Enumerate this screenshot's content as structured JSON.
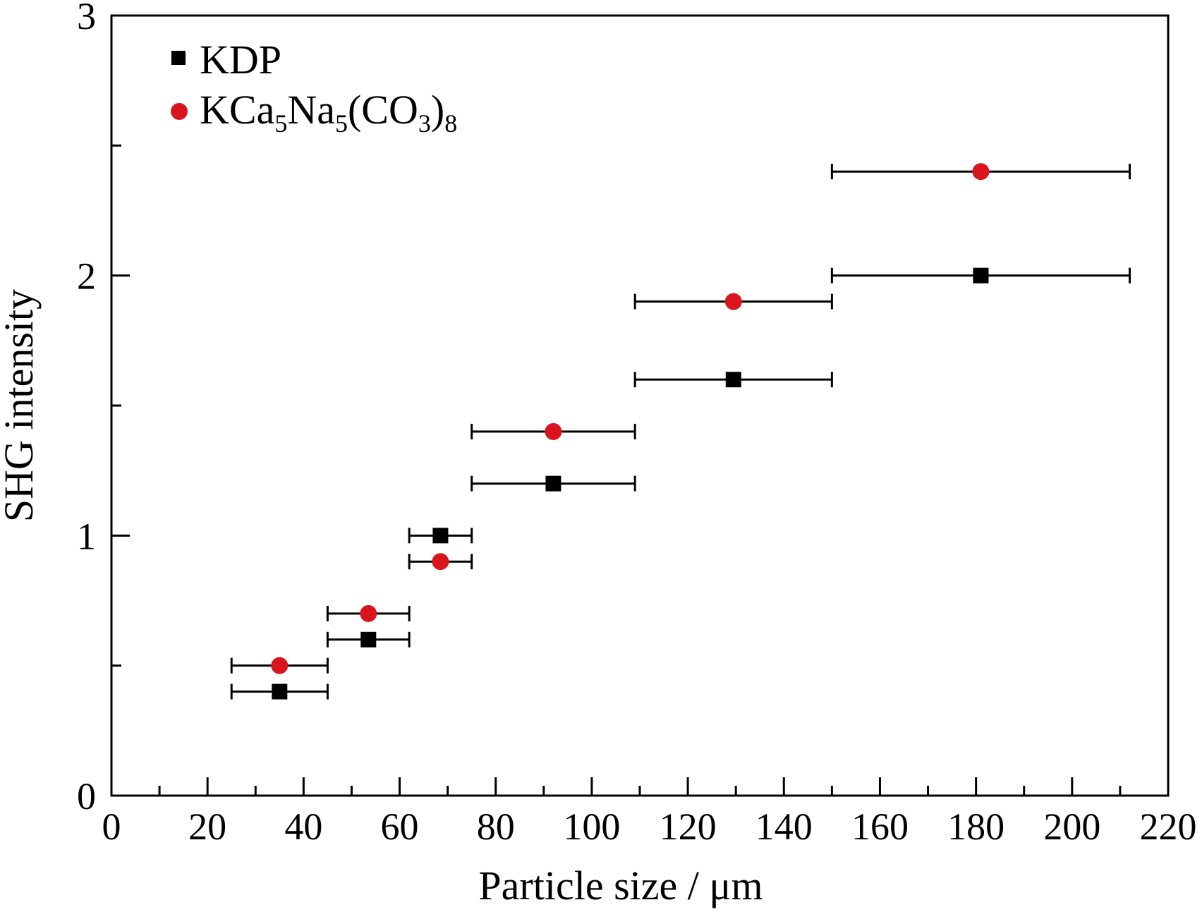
{
  "chart_data": {
    "type": "scatter",
    "xlabel": "Particle size / μm",
    "ylabel": "SHG intensity",
    "xlim": [
      0,
      220
    ],
    "ylim": [
      0,
      3
    ],
    "x_ticks": [
      0,
      20,
      40,
      60,
      80,
      100,
      120,
      140,
      160,
      180,
      200,
      220
    ],
    "y_ticks": [
      0,
      1,
      2,
      3
    ],
    "legend_position": "top-left",
    "grid": false,
    "series": [
      {
        "name": "KDP",
        "marker": "square",
        "color": "#000000",
        "points": [
          {
            "x": 35,
            "y": 0.4,
            "xmin": 25,
            "xmax": 45
          },
          {
            "x": 53.5,
            "y": 0.6,
            "xmin": 45,
            "xmax": 62
          },
          {
            "x": 68.5,
            "y": 1.0,
            "xmin": 62,
            "xmax": 75
          },
          {
            "x": 92,
            "y": 1.2,
            "xmin": 75,
            "xmax": 109
          },
          {
            "x": 129.5,
            "y": 1.6,
            "xmin": 109,
            "xmax": 150
          },
          {
            "x": 181,
            "y": 2.0,
            "xmin": 150,
            "xmax": 212
          }
        ]
      },
      {
        "name": "KCa5Na5(CO3)8",
        "marker": "circle",
        "color": "#d9141c",
        "points": [
          {
            "x": 35,
            "y": 0.5,
            "xmin": 25,
            "xmax": 45
          },
          {
            "x": 53.5,
            "y": 0.7,
            "xmin": 45,
            "xmax": 62
          },
          {
            "x": 68.5,
            "y": 0.9,
            "xmin": 62,
            "xmax": 75
          },
          {
            "x": 92,
            "y": 1.4,
            "xmin": 75,
            "xmax": 109
          },
          {
            "x": 129.5,
            "y": 1.9,
            "xmin": 109,
            "xmax": 150
          },
          {
            "x": 181,
            "y": 2.4,
            "xmin": 150,
            "xmax": 212
          }
        ]
      }
    ]
  }
}
